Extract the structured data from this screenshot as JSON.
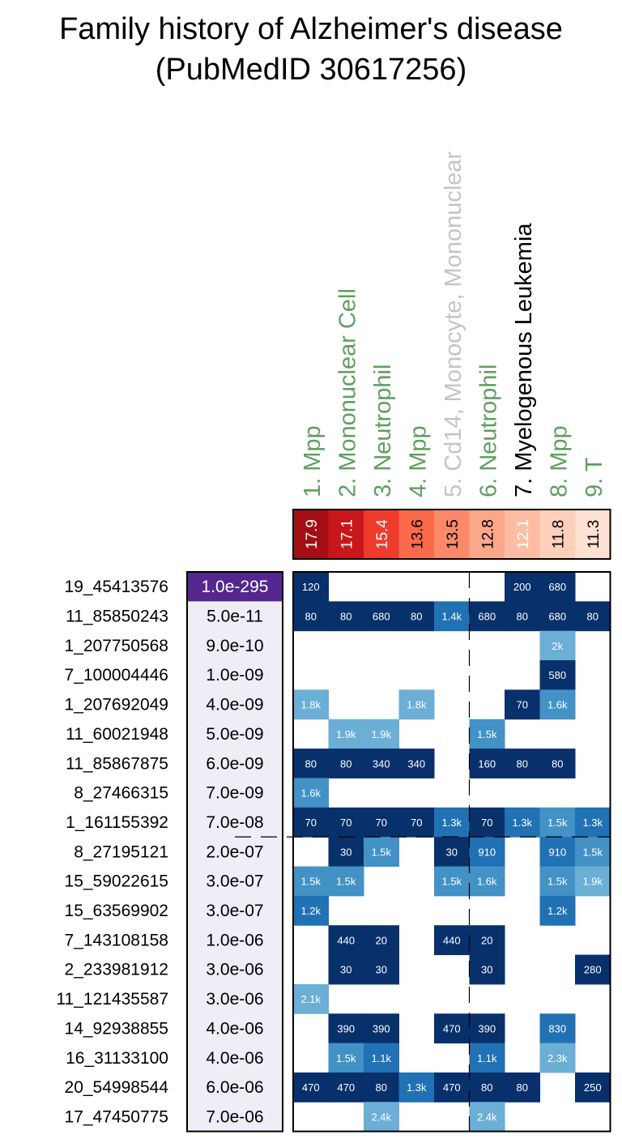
{
  "chart_data": {
    "type": "heatmap",
    "title": "Family history of Alzheimer's disease",
    "subtitle": "(PubMedID 30617256)",
    "columns": [
      {
        "label": "1. Mpp",
        "score": "17.9",
        "label_color": "#5f9e5f"
      },
      {
        "label": "2. Mononuclear Cell",
        "score": "17.1",
        "label_color": "#5f9e5f"
      },
      {
        "label": "3. Neutrophil",
        "score": "15.4",
        "label_color": "#5f9e5f"
      },
      {
        "label": "4. Mpp",
        "score": "13.6",
        "label_color": "#5f9e5f"
      },
      {
        "label": "5. Cd14, Monocyte, Mononuclear",
        "score": "13.5",
        "label_color": "#c4c4c4"
      },
      {
        "label": "6. Neutrophil",
        "score": "12.8",
        "label_color": "#5f9e5f"
      },
      {
        "label": "7. Myelogenous Leukemia",
        "score": "12.1",
        "label_color": "#000000"
      },
      {
        "label": "8. Mpp",
        "score": "11.8",
        "label_color": "#5f9e5f"
      },
      {
        "label": "9. T",
        "score": "11.3",
        "label_color": "#5f9e5f"
      }
    ],
    "score_colors": [
      "#a30f15",
      "#c8171c",
      "#ef3b2c",
      "#fb6a4a",
      "#fc8a6a",
      "#fca68a",
      "#fcbda4",
      "#fdd0bc",
      "#fee1d3"
    ],
    "score_text_colors": [
      "#ffffff",
      "#ffffff",
      "#ffffff",
      "#000000",
      "#000000",
      "#000000",
      "#ffffff",
      "#000000",
      "#000000"
    ],
    "rows": [
      {
        "snp": "19_45413576",
        "pvalue": "1.0e-295",
        "highlight": true,
        "cells": [
          "120",
          "",
          "",
          "",
          "",
          "",
          "200",
          "680",
          ""
        ]
      },
      {
        "snp": "11_85850243",
        "pvalue": "5.0e-11",
        "cells": [
          "80",
          "80",
          "680",
          "80",
          "1.4k",
          "680",
          "80",
          "680",
          "80"
        ]
      },
      {
        "snp": "1_207750568",
        "pvalue": "9.0e-10",
        "cells": [
          "",
          "",
          "",
          "",
          "",
          "",
          "",
          "2k",
          ""
        ]
      },
      {
        "snp": "7_100004446",
        "pvalue": "1.0e-09",
        "cells": [
          "",
          "",
          "",
          "",
          "",
          "",
          "",
          "580",
          ""
        ]
      },
      {
        "snp": "1_207692049",
        "pvalue": "4.0e-09",
        "cells": [
          "1.8k",
          "",
          "",
          "1.8k",
          "",
          "",
          "70",
          "1.6k",
          ""
        ]
      },
      {
        "snp": "11_60021948",
        "pvalue": "5.0e-09",
        "cells": [
          "",
          "1.9k",
          "1.9k",
          "",
          "",
          "1.5k",
          "",
          "",
          ""
        ]
      },
      {
        "snp": "11_85867875",
        "pvalue": "6.0e-09",
        "cells": [
          "80",
          "80",
          "340",
          "340",
          "",
          "160",
          "80",
          "80",
          ""
        ]
      },
      {
        "snp": "8_27466315",
        "pvalue": "7.0e-09",
        "cells": [
          "1.6k",
          "",
          "",
          "",
          "",
          "",
          "",
          "",
          ""
        ]
      },
      {
        "snp": "1_161155392",
        "pvalue": "7.0e-08",
        "cells": [
          "70",
          "70",
          "70",
          "70",
          "1.3k",
          "70",
          "1.3k",
          "1.5k",
          "1.3k"
        ]
      },
      {
        "snp": "8_27195121",
        "pvalue": "2.0e-07",
        "cells": [
          "",
          "30",
          "1.5k",
          "",
          "30",
          "910",
          "",
          "910",
          "1.5k"
        ]
      },
      {
        "snp": "15_59022615",
        "pvalue": "3.0e-07",
        "cells": [
          "1.5k",
          "1.5k",
          "",
          "",
          "1.5k",
          "1.6k",
          "",
          "1.5k",
          "1.9k"
        ]
      },
      {
        "snp": "15_63569902",
        "pvalue": "3.0e-07",
        "cells": [
          "1.2k",
          "",
          "",
          "",
          "",
          "",
          "",
          "1.2k",
          ""
        ]
      },
      {
        "snp": "7_143108158",
        "pvalue": "1.0e-06",
        "cells": [
          "",
          "440",
          "20",
          "",
          "440",
          "20",
          "",
          "",
          ""
        ]
      },
      {
        "snp": "2_233981912",
        "pvalue": "3.0e-06",
        "cells": [
          "",
          "30",
          "30",
          "",
          "",
          "30",
          "",
          "",
          "280"
        ]
      },
      {
        "snp": "11_121435587",
        "pvalue": "3.0e-06",
        "cells": [
          "2.1k",
          "",
          "",
          "",
          "",
          "",
          "",
          "",
          ""
        ]
      },
      {
        "snp": "14_92938855",
        "pvalue": "4.0e-06",
        "cells": [
          "",
          "390",
          "390",
          "",
          "470",
          "390",
          "",
          "830",
          ""
        ]
      },
      {
        "snp": "16_31133100",
        "pvalue": "4.0e-06",
        "cells": [
          "",
          "1.5k",
          "1.1k",
          "",
          "",
          "1.1k",
          "",
          "2.3k",
          ""
        ]
      },
      {
        "snp": "20_54998544",
        "pvalue": "6.0e-06",
        "cells": [
          "470",
          "470",
          "80",
          "1.3k",
          "470",
          "80",
          "80",
          "",
          "250"
        ]
      },
      {
        "snp": "17_47450775",
        "pvalue": "7.0e-06",
        "cells": [
          "",
          "",
          "2.4k",
          "",
          "",
          "2.4k",
          "",
          "",
          ""
        ]
      }
    ],
    "cell_color_scale": {
      "dark": "#08306b",
      "medium": "#2171b5",
      "light": "#4292c6",
      "lighter": "#6baed6"
    },
    "pvalue_panel_color": "#efedf5",
    "highlight_color": "#54278f",
    "threshold_after_row": "1_161155392",
    "threshold_after_column": "5. Cd14, Monocyte, Mononuclear"
  }
}
